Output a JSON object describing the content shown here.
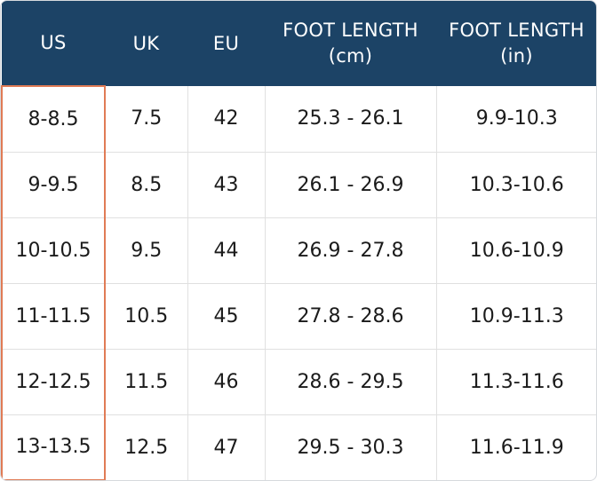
{
  "headers": [
    {
      "key": "us",
      "lines": [
        "US"
      ]
    },
    {
      "key": "uk",
      "lines": [
        "UK"
      ]
    },
    {
      "key": "eu",
      "lines": [
        "EU"
      ]
    },
    {
      "key": "cm",
      "lines": [
        "FOOT LENGTH",
        "(cm)"
      ]
    },
    {
      "key": "in",
      "lines": [
        "FOOT LENGTH",
        "(in)"
      ]
    }
  ],
  "rows": [
    {
      "us": "8-8.5",
      "uk": "7.5",
      "eu": "42",
      "cm": "25.3 - 26.1",
      "in": "9.9-10.3"
    },
    {
      "us": "9-9.5",
      "uk": "8.5",
      "eu": "43",
      "cm": "26.1 - 26.9",
      "in": "10.3-10.6"
    },
    {
      "us": "10-10.5",
      "uk": "9.5",
      "eu": "44",
      "cm": "26.9 - 27.8",
      "in": "10.6-10.9"
    },
    {
      "us": "11-11.5",
      "uk": "10.5",
      "eu": "45",
      "cm": "27.8 - 28.6",
      "in": "10.9-11.3"
    },
    {
      "us": "12-12.5",
      "uk": "11.5",
      "eu": "46",
      "cm": "28.6 - 29.5",
      "in": "11.3-11.6"
    },
    {
      "us": "13-13.5",
      "uk": "12.5",
      "eu": "47",
      "cm": "29.5 - 30.3",
      "in": "11.6-11.9"
    }
  ],
  "colors": {
    "header_bg": "#1c4366",
    "header_text": "#ffffff",
    "highlight_border": "#e07b55",
    "grid": "#e0e0e0",
    "cell_text": "#1b1b1b"
  }
}
